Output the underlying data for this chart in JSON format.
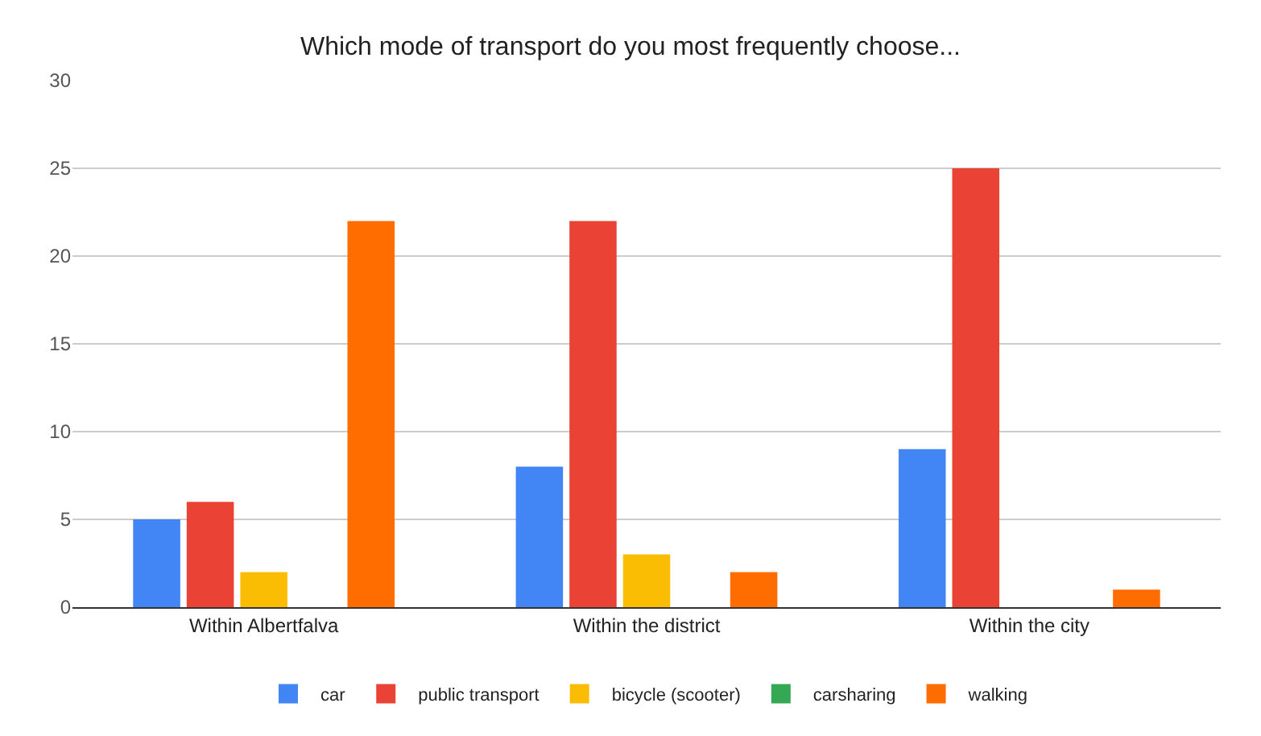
{
  "chart_data": {
    "type": "bar",
    "title": "Which mode of transport do you most frequently choose...",
    "categories": [
      "Within Albertfalva",
      "Within the district",
      "Within the city"
    ],
    "series": [
      {
        "name": "car",
        "color": "#4285f4",
        "values": [
          5,
          8,
          9
        ]
      },
      {
        "name": "public transport",
        "color": "#ea4335",
        "values": [
          6,
          22,
          25
        ]
      },
      {
        "name": "bicycle (scooter)",
        "color": "#fbbc04",
        "values": [
          2,
          3,
          0
        ]
      },
      {
        "name": "carsharing",
        "color": "#34a853",
        "values": [
          0,
          0,
          0
        ]
      },
      {
        "name": "walking",
        "color": "#ff6d01",
        "values": [
          22,
          2,
          1
        ]
      }
    ],
    "ylim": [
      0,
      30
    ],
    "yticks": [
      0,
      5,
      10,
      15,
      20,
      25,
      30
    ],
    "grid": "y",
    "legend": "bottom"
  }
}
